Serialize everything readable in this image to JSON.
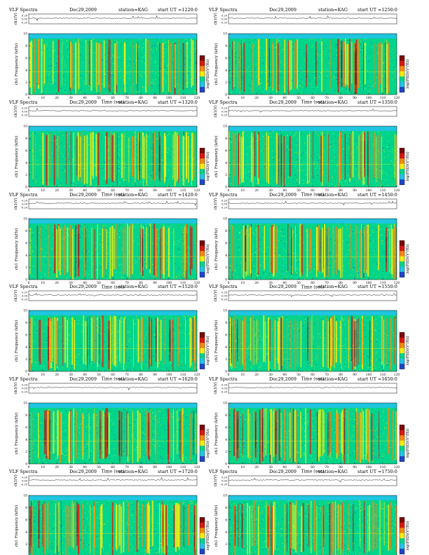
{
  "figure": {
    "rows": 6,
    "cols": 2,
    "header_labels": {
      "product": "VLF Spectra",
      "date": "Dec29,2009",
      "station": "station=KAG",
      "start_prefix": "start  UT  ="
    },
    "waveform_ylabel": "ch1(V)",
    "waveform_ticks": [
      "0.20",
      "0.00",
      "-0.20"
    ],
    "spectro_ylabel": "ch1 Frequency  (kHz)",
    "spectro_yticks": [
      "0",
      "2",
      "4",
      "6",
      "8",
      "10"
    ],
    "xticks": [
      "0",
      "10",
      "20",
      "30",
      "40",
      "50",
      "60",
      "70",
      "80",
      "90",
      "100",
      "110",
      "120"
    ],
    "xlabel": "Time  (sec)",
    "colorbar_label": "log(PSD)(V²/Hz)",
    "colors": {
      "background": "#00d58a",
      "quiet": "#22c4e8",
      "yellow": "#f5ee10",
      "orange": "#f58a10",
      "red": "#d81a10",
      "dark": "#7a0a08",
      "blue": "#1f46c8"
    }
  },
  "chart_data": [
    {
      "type": "heatmap",
      "start": "1220:0",
      "xlim": [
        0,
        120
      ],
      "ylim": [
        0,
        10
      ],
      "seed": 11
    },
    {
      "type": "heatmap",
      "start": "1250:0",
      "xlim": [
        0,
        120
      ],
      "ylim": [
        0,
        10
      ],
      "seed": 23
    },
    {
      "type": "heatmap",
      "start": "1320:0",
      "xlim": [
        0,
        120
      ],
      "ylim": [
        0,
        10
      ],
      "seed": 37
    },
    {
      "type": "heatmap",
      "start": "1350:0",
      "xlim": [
        0,
        120
      ],
      "ylim": [
        0,
        10
      ],
      "seed": 41
    },
    {
      "type": "heatmap",
      "start": "1420:0",
      "xlim": [
        0,
        120
      ],
      "ylim": [
        0,
        10
      ],
      "seed": 53
    },
    {
      "type": "heatmap",
      "start": "1450:0",
      "xlim": [
        0,
        120
      ],
      "ylim": [
        0,
        10
      ],
      "seed": 67
    },
    {
      "type": "heatmap",
      "start": "1520:0",
      "xlim": [
        0,
        120
      ],
      "ylim": [
        0,
        10
      ],
      "seed": 71
    },
    {
      "type": "heatmap",
      "start": "1550:0",
      "xlim": [
        0,
        120
      ],
      "ylim": [
        0,
        10
      ],
      "seed": 83
    },
    {
      "type": "heatmap",
      "start": "1620:0",
      "xlim": [
        0,
        120
      ],
      "ylim": [
        0,
        10
      ],
      "seed": 97
    },
    {
      "type": "heatmap",
      "start": "1650:0",
      "xlim": [
        0,
        120
      ],
      "ylim": [
        0,
        10
      ],
      "seed": 101
    },
    {
      "type": "heatmap",
      "start": "1720:0",
      "xlim": [
        0,
        120
      ],
      "ylim": [
        0,
        10
      ],
      "seed": 113
    },
    {
      "type": "heatmap",
      "start": "1750:0",
      "xlim": [
        0,
        120
      ],
      "ylim": [
        0,
        10
      ],
      "seed": 127
    }
  ]
}
